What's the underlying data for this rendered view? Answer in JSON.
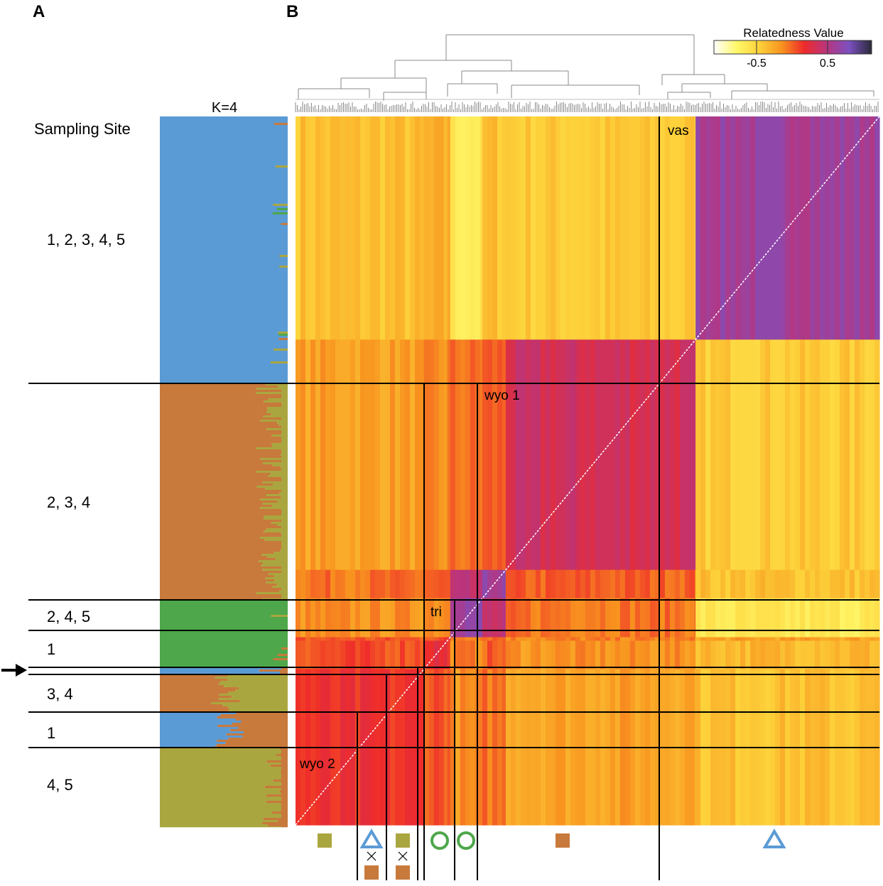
{
  "panels": {
    "a": "A",
    "b": "B"
  },
  "structure": {
    "k_label": "K=4",
    "header": "Sampling Site",
    "colors": {
      "blue": "#5b9bd5",
      "brown": "#c8793c",
      "green": "#4ea74a",
      "olive": "#aaa63f"
    },
    "groups": [
      {
        "sites": "1, 2, 3, 4, 5",
        "dominant": "blue",
        "share": 0.312
      },
      {
        "sites": "2, 3, 4",
        "dominant": "brown",
        "share": 0.252
      },
      {
        "sites": "2, 4, 5",
        "dominant": "green",
        "share": 0.036
      },
      {
        "sites": "1",
        "dominant": "green",
        "share": 0.045
      },
      {
        "sites": "",
        "dominant": "blue",
        "share": 0.008
      },
      {
        "sites": "3, 4",
        "dominant": "brown_olive",
        "share": 0.045
      },
      {
        "sites": "1",
        "dominant": "blue_brown",
        "share": 0.041
      },
      {
        "sites": "4, 5",
        "dominant": "olive",
        "share": 0.091
      }
    ],
    "arrow_label": "arrow"
  },
  "chart_data": {
    "type": "heatmap",
    "title": "Relatedness Value",
    "colorbar": {
      "ticks": [
        "-0.5",
        "0.5"
      ],
      "stops": [
        "#ffffff",
        "#fff86a",
        "#fdd23a",
        "#f8941f",
        "#ef2b2a",
        "#b8357e",
        "#7b50c0",
        "#2a2a38"
      ]
    },
    "clusters": [
      {
        "label": "wyo 2",
        "share": 0.22
      },
      {
        "label": "",
        "share": 0.04
      },
      {
        "label": "",
        "share": 0.005
      },
      {
        "label": "tri",
        "share": 0.055
      },
      {
        "label": "",
        "share": 0.04
      },
      {
        "label": "wyo 1",
        "share": 0.325
      },
      {
        "label": "vas",
        "share": 0.315
      }
    ],
    "block_values": [
      [
        0.12,
        0.05,
        0.02,
        -0.15,
        -0.05,
        -0.2,
        -0.35
      ],
      [
        0.05,
        0.2,
        0.05,
        -0.1,
        0.0,
        -0.15,
        -0.3
      ],
      [
        0.02,
        0.05,
        0.2,
        -0.05,
        0.0,
        -0.1,
        -0.2
      ],
      [
        -0.15,
        -0.1,
        -0.05,
        0.6,
        0.35,
        -0.05,
        -0.6
      ],
      [
        -0.05,
        0.0,
        0.0,
        0.35,
        0.55,
        0.0,
        -0.35
      ],
      [
        -0.2,
        -0.15,
        -0.1,
        -0.05,
        0.0,
        0.3,
        -0.4
      ],
      [
        -0.35,
        -0.3,
        -0.2,
        -0.6,
        -0.35,
        -0.4,
        0.55
      ]
    ],
    "dendrogram": "hierarchical clustering",
    "markers": [
      {
        "shape": "square",
        "color": "#aaa63f"
      },
      {
        "shape": "triangle_cross_square",
        "color": "#5b9bd5"
      },
      {
        "shape": "square_cross_square",
        "color": "#aaa63f"
      },
      {
        "shape": "circle",
        "color": "#4ea74a"
      },
      {
        "shape": "circle",
        "color": "#4ea74a"
      },
      {
        "shape": "square",
        "color": "#c8793c"
      },
      {
        "shape": "triangle",
        "color": "#5b9bd5"
      }
    ]
  }
}
